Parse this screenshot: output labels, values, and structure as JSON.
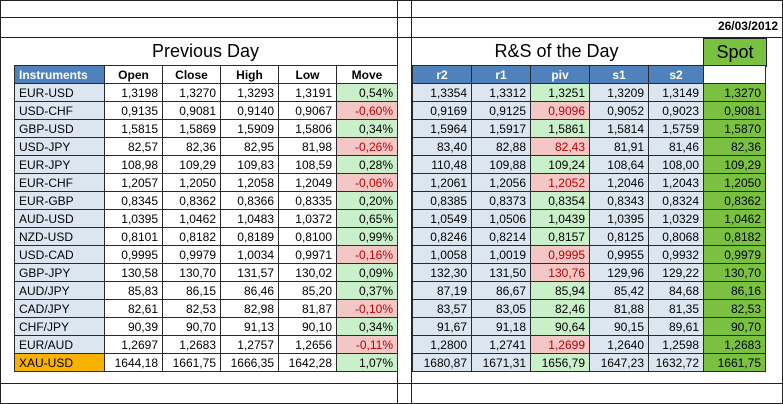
{
  "date": "26/03/2012",
  "left_title": "Previous Day",
  "right_title": "R&S of the Day",
  "spot_title": "Spot",
  "left_headers": [
    "Instruments",
    "Open",
    "Close",
    "High",
    "Low",
    "Move"
  ],
  "right_headers": [
    "r2",
    "r1",
    "piv",
    "s1",
    "s2"
  ],
  "rows": [
    {
      "instrument": "EUR-USD",
      "open": "1,3198",
      "close": "1,3270",
      "high": "1,3293",
      "low": "1,3191",
      "move": "0,54%",
      "move_sign": "pos",
      "r2": "1,3354",
      "r1": "1,3312",
      "piv": "1,3251",
      "piv_sign": "pos",
      "s1": "1,3209",
      "s2": "1,3149",
      "spot": "1,3270"
    },
    {
      "instrument": "USD-CHF",
      "open": "0,9135",
      "close": "0,9081",
      "high": "0,9140",
      "low": "0,9067",
      "move": "-0,60%",
      "move_sign": "neg",
      "r2": "0,9169",
      "r1": "0,9125",
      "piv": "0,9096",
      "piv_sign": "neg",
      "s1": "0,9052",
      "s2": "0,9023",
      "spot": "0,9081"
    },
    {
      "instrument": "GBP-USD",
      "open": "1,5815",
      "close": "1,5869",
      "high": "1,5909",
      "low": "1,5806",
      "move": "0,34%",
      "move_sign": "pos",
      "r2": "1,5964",
      "r1": "1,5917",
      "piv": "1,5861",
      "piv_sign": "pos",
      "s1": "1,5814",
      "s2": "1,5759",
      "spot": "1,5870"
    },
    {
      "instrument": "USD-JPY",
      "open": "82,57",
      "close": "82,36",
      "high": "82,95",
      "low": "81,98",
      "move": "-0,26%",
      "move_sign": "neg",
      "r2": "83,40",
      "r1": "82,88",
      "piv": "82,43",
      "piv_sign": "neg",
      "s1": "81,91",
      "s2": "81,46",
      "spot": "82,36"
    },
    {
      "instrument": "EUR-JPY",
      "open": "108,98",
      "close": "109,29",
      "high": "109,83",
      "low": "108,59",
      "move": "0,28%",
      "move_sign": "pos",
      "r2": "110,48",
      "r1": "109,88",
      "piv": "109,24",
      "piv_sign": "pos",
      "s1": "108,64",
      "s2": "108,00",
      "spot": "109,29"
    },
    {
      "instrument": "EUR-CHF",
      "open": "1,2057",
      "close": "1,2050",
      "high": "1,2058",
      "low": "1,2049",
      "move": "-0,06%",
      "move_sign": "neg",
      "r2": "1,2061",
      "r1": "1,2056",
      "piv": "1,2052",
      "piv_sign": "neg",
      "s1": "1,2046",
      "s2": "1,2043",
      "spot": "1,2050"
    },
    {
      "instrument": "EUR-GBP",
      "open": "0,8345",
      "close": "0,8362",
      "high": "0,8366",
      "low": "0,8335",
      "move": "0,20%",
      "move_sign": "pos",
      "r2": "0,8385",
      "r1": "0,8373",
      "piv": "0,8354",
      "piv_sign": "pos",
      "s1": "0,8343",
      "s2": "0,8324",
      "spot": "0,8362"
    },
    {
      "instrument": "AUD-USD",
      "open": "1,0395",
      "close": "1,0462",
      "high": "1,0483",
      "low": "1,0372",
      "move": "0,65%",
      "move_sign": "pos",
      "r2": "1,0549",
      "r1": "1,0506",
      "piv": "1,0439",
      "piv_sign": "pos",
      "s1": "1,0395",
      "s2": "1,0329",
      "spot": "1,0462"
    },
    {
      "instrument": "NZD-USD",
      "open": "0,8101",
      "close": "0,8182",
      "high": "0,8189",
      "low": "0,8100",
      "move": "0,99%",
      "move_sign": "pos",
      "r2": "0,8246",
      "r1": "0,8214",
      "piv": "0,8157",
      "piv_sign": "pos",
      "s1": "0,8125",
      "s2": "0,8068",
      "spot": "0,8182"
    },
    {
      "instrument": "USD-CAD",
      "open": "0,9995",
      "close": "0,9979",
      "high": "1,0034",
      "low": "0,9971",
      "move": "-0,16%",
      "move_sign": "neg",
      "r2": "1,0058",
      "r1": "1,0019",
      "piv": "0,9995",
      "piv_sign": "neg",
      "s1": "0,9955",
      "s2": "0,9932",
      "spot": "0,9979"
    },
    {
      "instrument": "GBP-JPY",
      "open": "130,58",
      "close": "130,70",
      "high": "131,57",
      "low": "130,02",
      "move": "0,09%",
      "move_sign": "pos",
      "r2": "132,30",
      "r1": "131,50",
      "piv": "130,76",
      "piv_sign": "neg",
      "s1": "129,96",
      "s2": "129,22",
      "spot": "130,70"
    },
    {
      "instrument": "AUD/JPY",
      "open": "85,83",
      "close": "86,15",
      "high": "86,46",
      "low": "85,20",
      "move": "0,37%",
      "move_sign": "pos",
      "r2": "87,19",
      "r1": "86,67",
      "piv": "85,94",
      "piv_sign": "pos",
      "s1": "85,42",
      "s2": "84,68",
      "spot": "86,16"
    },
    {
      "instrument": "CAD/JPY",
      "open": "82,61",
      "close": "82,53",
      "high": "82,98",
      "low": "81,87",
      "move": "-0,10%",
      "move_sign": "neg",
      "r2": "83,57",
      "r1": "83,05",
      "piv": "82,46",
      "piv_sign": "pos",
      "s1": "81,88",
      "s2": "81,35",
      "spot": "82,53"
    },
    {
      "instrument": "CHF/JPY",
      "open": "90,39",
      "close": "90,70",
      "high": "91,13",
      "low": "90,10",
      "move": "0,34%",
      "move_sign": "pos",
      "r2": "91,67",
      "r1": "91,18",
      "piv": "90,64",
      "piv_sign": "pos",
      "s1": "90,15",
      "s2": "89,61",
      "spot": "90,70"
    },
    {
      "instrument": "EUR/AUD",
      "open": "1,2697",
      "close": "1,2683",
      "high": "1,2757",
      "low": "1,2656",
      "move": "-0,11%",
      "move_sign": "neg",
      "r2": "1,2800",
      "r1": "1,2741",
      "piv": "1,2699",
      "piv_sign": "neg",
      "s1": "1,2640",
      "s2": "1,2598",
      "spot": "1,2683"
    },
    {
      "instrument": "XAU-USD",
      "open": "1644,18",
      "close": "1661,75",
      "high": "1666,35",
      "low": "1642,28",
      "move": "1,07%",
      "move_sign": "pos",
      "r2": "1680,87",
      "r1": "1671,31",
      "piv": "1656,79",
      "piv_sign": "pos",
      "s1": "1647,23",
      "s2": "1632,72",
      "spot": "1661,75"
    }
  ],
  "colors": {
    "header_blue": "#4f81bd",
    "row_light_blue": "#dce6f1",
    "positive_green": "#c9f0c9",
    "negative_red": "#f4c7c7",
    "negative_text": "#c00000",
    "spot_green": "#7ac142",
    "gold_orange": "#f7b200"
  }
}
